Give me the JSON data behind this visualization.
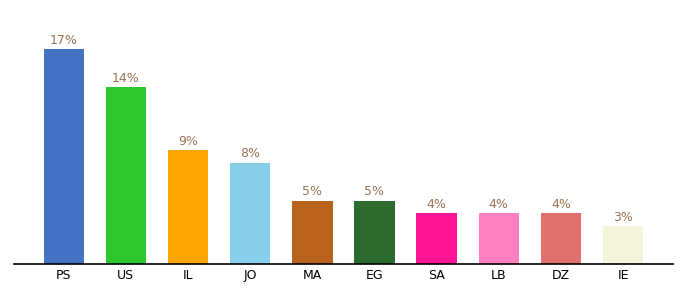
{
  "categories": [
    "PS",
    "US",
    "IL",
    "JO",
    "MA",
    "EG",
    "SA",
    "LB",
    "DZ",
    "IE"
  ],
  "values": [
    17,
    14,
    9,
    8,
    5,
    5,
    4,
    4,
    4,
    3
  ],
  "bar_colors": [
    "#4472C4",
    "#2DC72D",
    "#FFA500",
    "#87CEEB",
    "#B8621B",
    "#2D6A2D",
    "#FF1493",
    "#FF80C0",
    "#E07070",
    "#F5F5DC"
  ],
  "ylim": [
    0,
    19
  ],
  "label_color": "#9B7355",
  "background_color": "#ffffff",
  "label_fontsize": 9,
  "tick_fontsize": 9,
  "bar_width": 0.65
}
